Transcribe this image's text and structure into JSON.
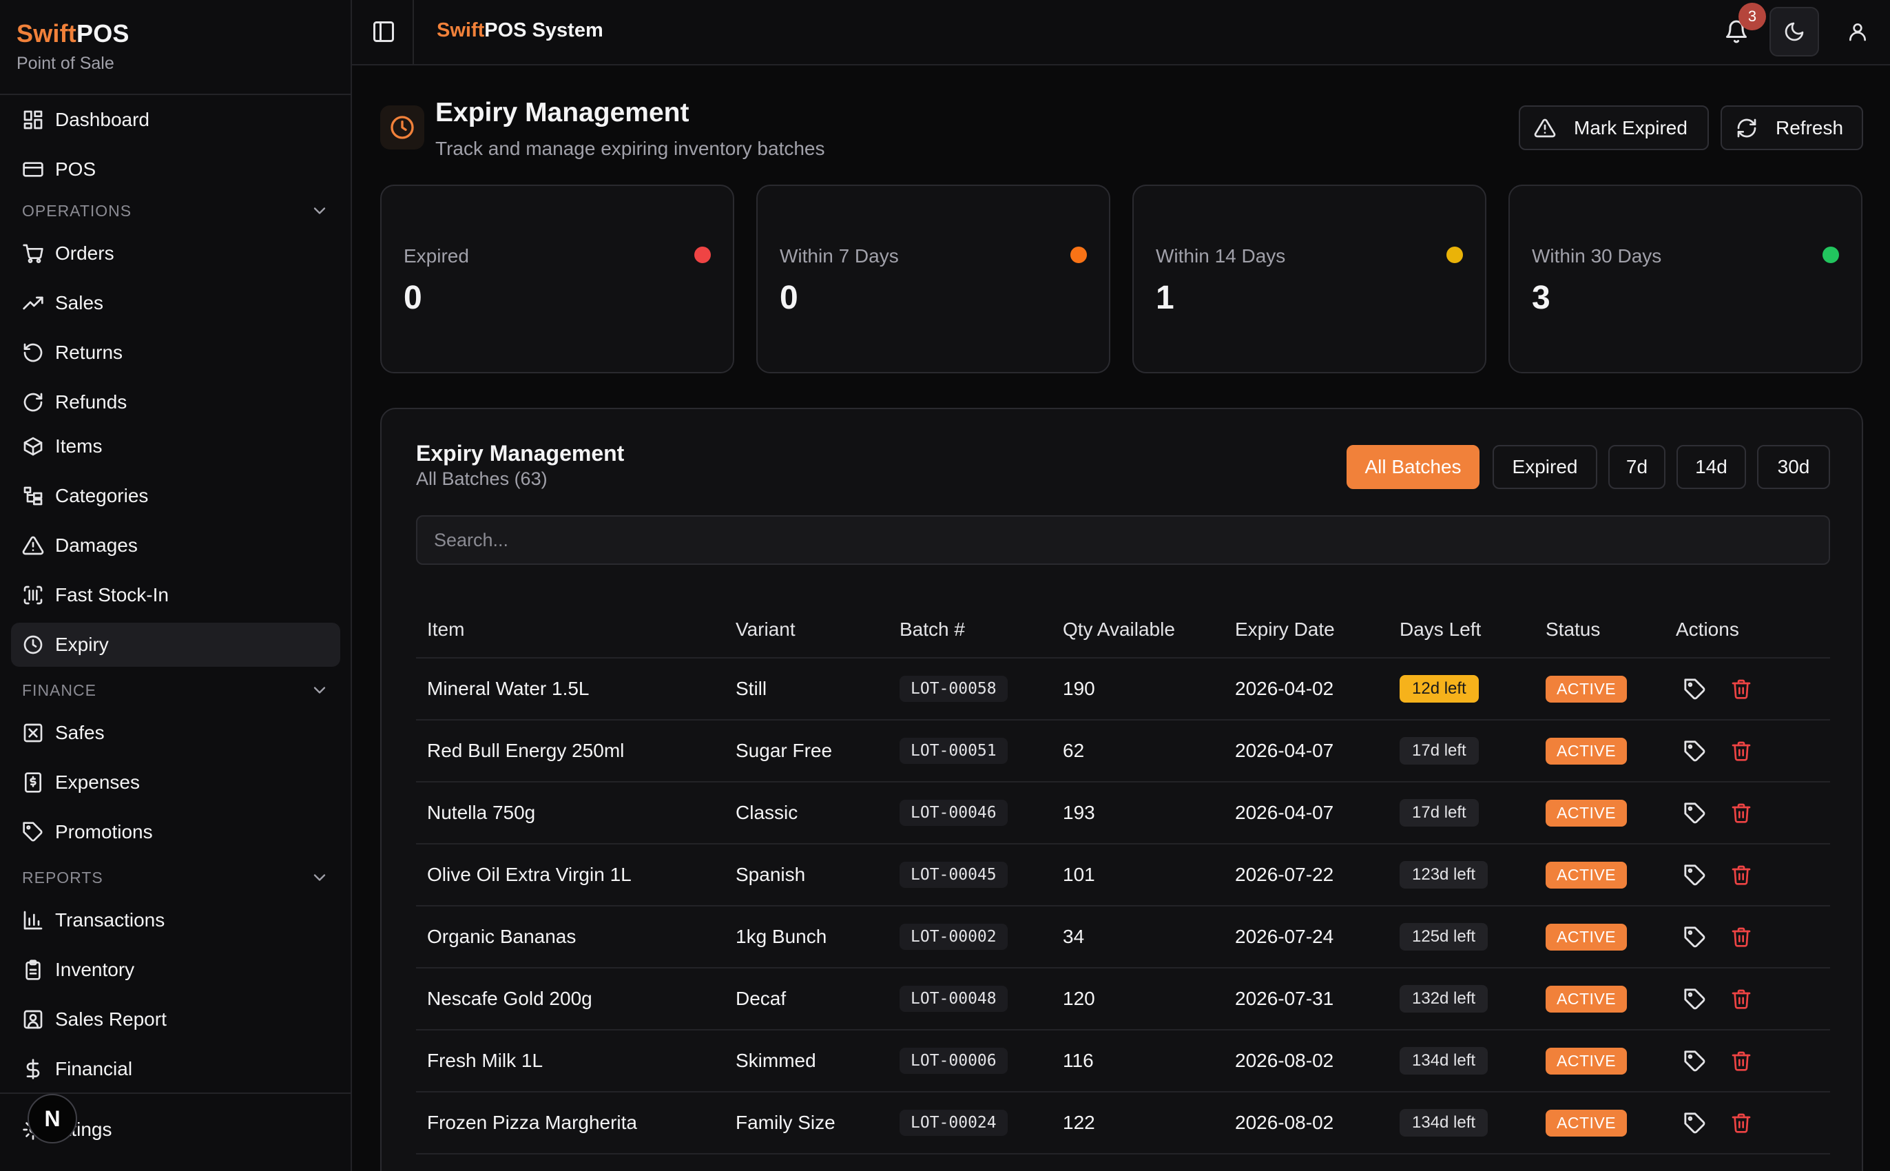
{
  "brand": {
    "name_accent": "Swift",
    "name_rest": "POS",
    "subtitle": "Point of Sale"
  },
  "sidebar": {
    "items": [
      {
        "label": "Dashboard",
        "icon": "layout-dashboard-icon"
      },
      {
        "label": "POS",
        "icon": "credit-card-icon"
      },
      {
        "label": "Orders",
        "icon": "shopping-cart-icon"
      },
      {
        "label": "Sales",
        "icon": "trending-up-icon"
      },
      {
        "label": "Returns",
        "icon": "rotate-ccw-icon"
      },
      {
        "label": "Refunds",
        "icon": "rotate-cw-icon"
      },
      {
        "label": "Items",
        "icon": "package-icon"
      },
      {
        "label": "Categories",
        "icon": "folder-tree-icon"
      },
      {
        "label": "Damages",
        "icon": "alert-triangle-icon"
      },
      {
        "label": "Fast Stock-In",
        "icon": "scan-barcode-icon"
      },
      {
        "label": "Expiry",
        "icon": "clock-icon",
        "active": true
      },
      {
        "label": "Safes",
        "icon": "safe-icon"
      },
      {
        "label": "Expenses",
        "icon": "receipt-icon"
      },
      {
        "label": "Promotions",
        "icon": "tag-icon"
      },
      {
        "label": "Transactions",
        "icon": "bar-chart-icon"
      },
      {
        "label": "Inventory",
        "icon": "clipboard-icon"
      },
      {
        "label": "Sales Report",
        "icon": "user-square-icon"
      },
      {
        "label": "Financial",
        "icon": "dollar-icon"
      },
      {
        "label": "ettings",
        "icon": "settings-icon"
      }
    ],
    "sections": [
      "OPERATIONS",
      "FINANCE",
      "REPORTS"
    ],
    "footer_badge": "N"
  },
  "topbar": {
    "title_accent": "Swift",
    "title_rest": "POS System",
    "notification_count": "3"
  },
  "page": {
    "title": "Expiry Management",
    "subtitle": "Track and manage expiring inventory batches",
    "mark_expired_label": "Mark Expired",
    "refresh_label": "Refresh"
  },
  "stats": [
    {
      "label": "Expired",
      "value": "0",
      "color": "#ef4444"
    },
    {
      "label": "Within 7 Days",
      "value": "0",
      "color": "#f97316"
    },
    {
      "label": "Within 14 Days",
      "value": "1",
      "color": "#eab308"
    },
    {
      "label": "Within 30 Days",
      "value": "3",
      "color": "#22c55e"
    }
  ],
  "panel": {
    "title": "Expiry Management",
    "subtitle": "All Batches (63)",
    "filters": [
      "All Batches",
      "Expired",
      "7d",
      "14d",
      "30d"
    ],
    "active_filter": "All Batches",
    "search_placeholder": "Search..."
  },
  "table": {
    "headers": [
      "Item",
      "Variant",
      "Batch #",
      "Qty Available",
      "Expiry Date",
      "Days Left",
      "Status",
      "Actions"
    ],
    "rows": [
      {
        "item": "Mineral Water 1.5L",
        "variant": "Still",
        "batch": "LOT-00058",
        "qty": "190",
        "expiry": "2026-04-02",
        "days": "12d left",
        "status": "ACTIVE"
      },
      {
        "item": "Red Bull Energy 250ml",
        "variant": "Sugar Free",
        "batch": "LOT-00051",
        "qty": "62",
        "expiry": "2026-04-07",
        "days": "17d left",
        "status": "ACTIVE"
      },
      {
        "item": "Nutella 750g",
        "variant": "Classic",
        "batch": "LOT-00046",
        "qty": "193",
        "expiry": "2026-04-07",
        "days": "17d left",
        "status": "ACTIVE"
      },
      {
        "item": "Olive Oil Extra Virgin 1L",
        "variant": "Spanish",
        "batch": "LOT-00045",
        "qty": "101",
        "expiry": "2026-07-22",
        "days": "123d left",
        "status": "ACTIVE"
      },
      {
        "item": "Organic Bananas",
        "variant": "1kg Bunch",
        "batch": "LOT-00002",
        "qty": "34",
        "expiry": "2026-07-24",
        "days": "125d left",
        "status": "ACTIVE"
      },
      {
        "item": "Nescafe Gold 200g",
        "variant": "Decaf",
        "batch": "LOT-00048",
        "qty": "120",
        "expiry": "2026-07-31",
        "days": "132d left",
        "status": "ACTIVE"
      },
      {
        "item": "Fresh Milk 1L",
        "variant": "Skimmed",
        "batch": "LOT-00006",
        "qty": "116",
        "expiry": "2026-08-02",
        "days": "134d left",
        "status": "ACTIVE"
      },
      {
        "item": "Frozen Pizza Margherita",
        "variant": "Family Size",
        "batch": "LOT-00024",
        "qty": "122",
        "expiry": "2026-08-02",
        "days": "134d left",
        "status": "ACTIVE"
      }
    ]
  }
}
